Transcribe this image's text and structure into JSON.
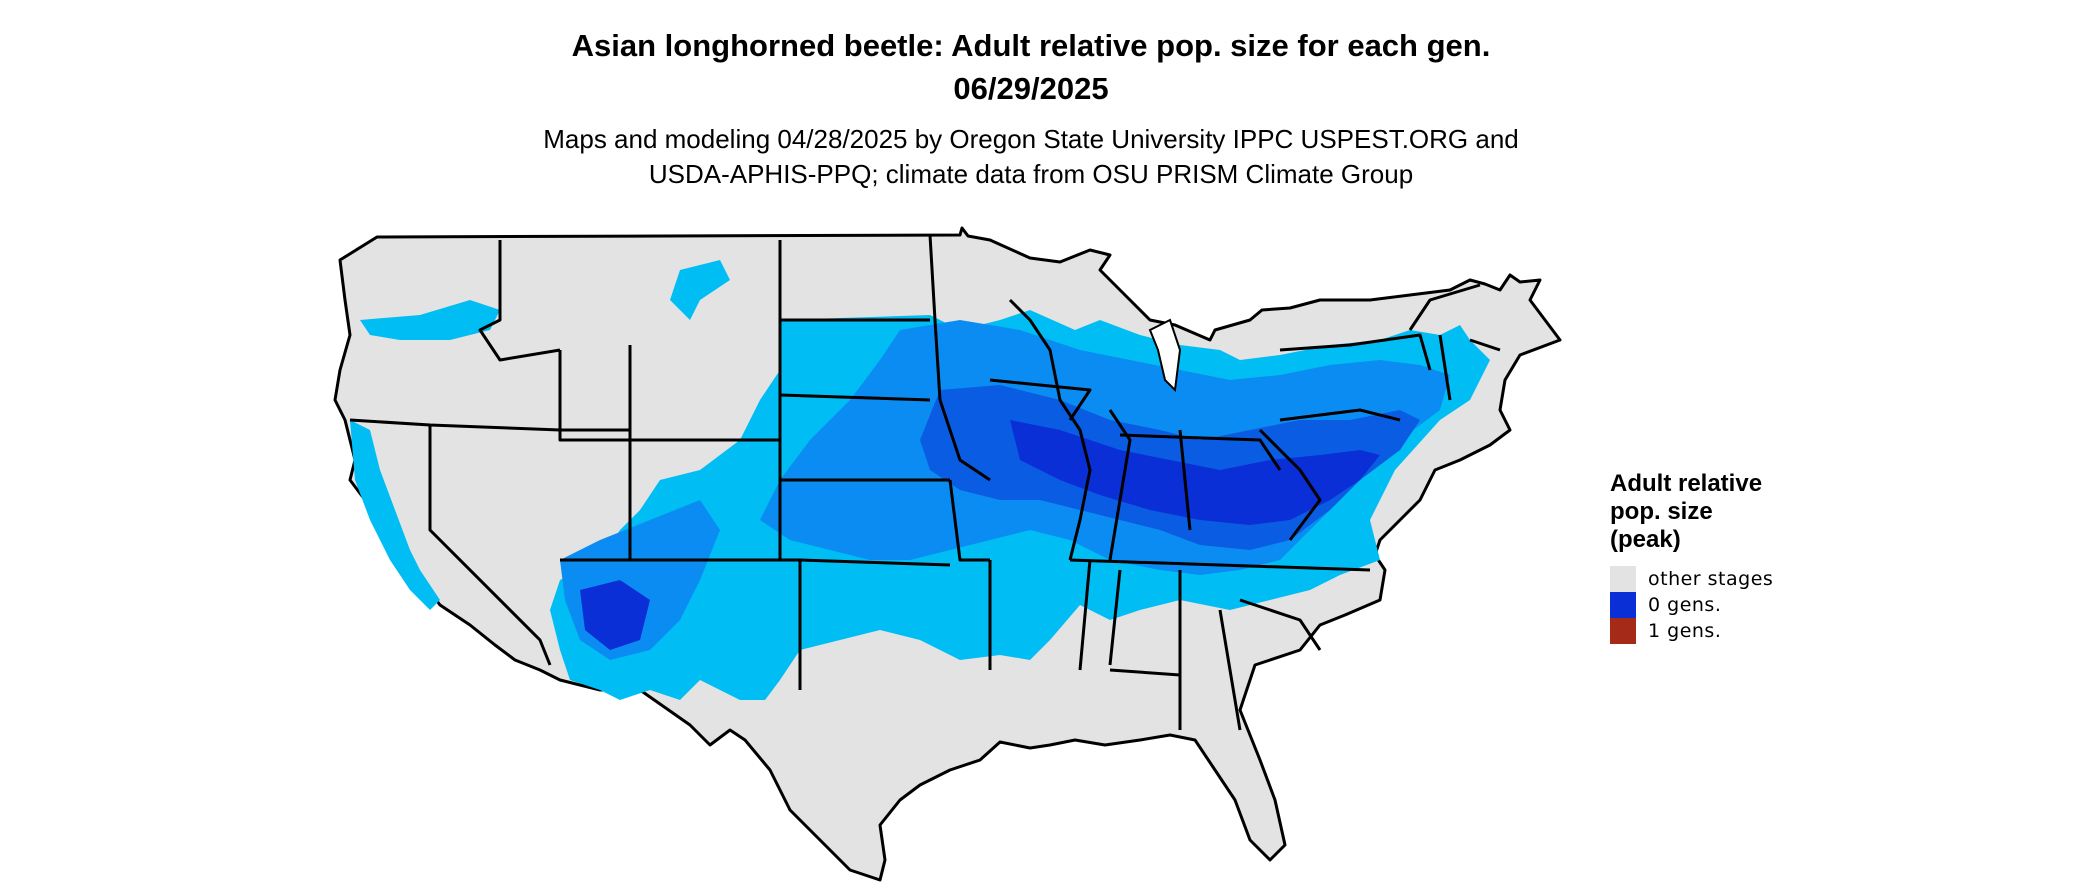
{
  "title_line1": "Asian longhorned beetle: Adult relative pop. size for each gen.",
  "title_line2": "06/29/2025",
  "subtitle_line1": "Maps and modeling 04/28/2025 by Oregon State University IPPC USPEST.ORG and",
  "subtitle_line2": "USDA-APHIS-PPQ; climate data from OSU PRISM Climate Group",
  "legend": {
    "title_line1": "Adult relative",
    "title_line2": "pop. size",
    "title_line3": "(peak)",
    "items": [
      {
        "label": "other stages",
        "color": "#e3e3e3"
      },
      {
        "label": "0 gens.",
        "color": "#0a2fd6"
      },
      {
        "label": "1 gens.",
        "color": "#a62a18"
      }
    ]
  },
  "map_colors": {
    "background_land": "#e3e3e3",
    "light_blue": "#00bdf4",
    "medium_blue": "#0a8cf2",
    "dark_blue": "#0a5ce2",
    "darkest_blue": "#0a2fd6",
    "border": "#000000"
  }
}
